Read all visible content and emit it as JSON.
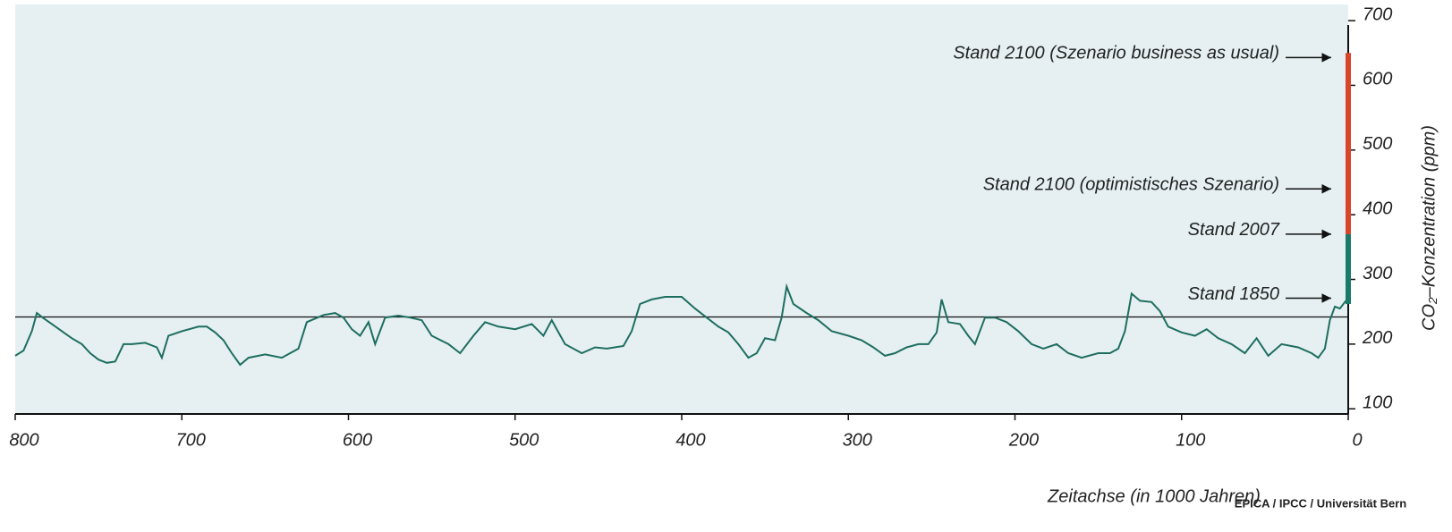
{
  "chart_data": {
    "type": "line",
    "x_label": "Zeitachse (in 1000 Jahren)",
    "y_label": "CO₂–Konzentration (ppm)",
    "source": "EPICA / IPCC / Universität Bern",
    "xlim": [
      800,
      0
    ],
    "xticks": [
      800,
      700,
      600,
      500,
      400,
      300,
      200,
      100,
      0
    ],
    "ylim": [
      92,
      725
    ],
    "yticks": [
      100,
      200,
      300,
      400,
      500,
      600,
      700
    ],
    "background": "#e6f0f3",
    "reference_line": 242,
    "series": [
      {
        "color": "#1e6e60",
        "x": [
          800,
          795,
          790,
          787,
          783,
          778,
          772,
          766,
          760,
          755,
          750,
          745,
          740,
          735,
          730,
          722,
          715,
          712,
          708,
          700,
          690,
          685,
          680,
          675,
          670,
          665,
          660,
          650,
          640,
          630,
          625,
          615,
          608,
          603,
          598,
          593,
          588,
          584,
          578,
          570,
          563,
          556,
          550,
          540,
          533,
          525,
          518,
          510,
          500,
          490,
          483,
          478,
          470,
          460,
          452,
          445,
          435,
          430,
          425,
          418,
          410,
          400,
          392,
          385,
          378,
          372,
          366,
          360,
          355,
          350,
          344,
          340,
          337,
          333,
          325,
          318,
          310,
          300,
          292,
          285,
          278,
          272,
          265,
          258,
          252,
          247,
          244,
          240,
          233,
          228,
          224,
          218,
          212,
          205,
          198,
          190,
          183,
          175,
          168,
          160,
          150,
          143,
          138,
          134,
          130,
          125,
          118,
          113,
          108,
          100,
          92,
          85,
          78,
          70,
          62,
          55,
          48,
          40,
          30,
          22,
          18,
          14,
          11,
          8,
          5,
          2,
          0
        ],
        "values": [
          182,
          190,
          220,
          248,
          240,
          231,
          220,
          209,
          200,
          186,
          176,
          171,
          173,
          200,
          200,
          202,
          195,
          179,
          213,
          220,
          227,
          227,
          218,
          206,
          186,
          168,
          179,
          184,
          179,
          193,
          234,
          245,
          248,
          241,
          223,
          213,
          234,
          200,
          241,
          244,
          241,
          237,
          213,
          200,
          186,
          213,
          234,
          227,
          223,
          231,
          213,
          237,
          200,
          186,
          195,
          193,
          197,
          220,
          262,
          269,
          273,
          273,
          255,
          241,
          227,
          218,
          200,
          179,
          186,
          209,
          206,
          241,
          289,
          262,
          248,
          237,
          220,
          213,
          206,
          195,
          182,
          186,
          195,
          200,
          200,
          218,
          269,
          234,
          231,
          213,
          200,
          241,
          241,
          234,
          220,
          200,
          193,
          200,
          186,
          179,
          186,
          186,
          193,
          220,
          278,
          267,
          265,
          251,
          227,
          218,
          213,
          223,
          209,
          200,
          186,
          209,
          182,
          200,
          195,
          186,
          179,
          193,
          237,
          258,
          255,
          265,
          271
        ]
      }
    ],
    "bars": [
      {
        "from": 262,
        "to": 370,
        "color": "#1b7a6a"
      },
      {
        "from": 370,
        "to": 650,
        "color": "#d9452b"
      }
    ],
    "annotations": [
      {
        "text": "Stand 2100 (Szenario business as usual)",
        "value": 643
      },
      {
        "text": "Stand 2100 (optimistisches Szenario)",
        "value": 440
      },
      {
        "text": "Stand 2007",
        "value": 370
      },
      {
        "text": "Stand 1850",
        "value": 271
      }
    ]
  }
}
